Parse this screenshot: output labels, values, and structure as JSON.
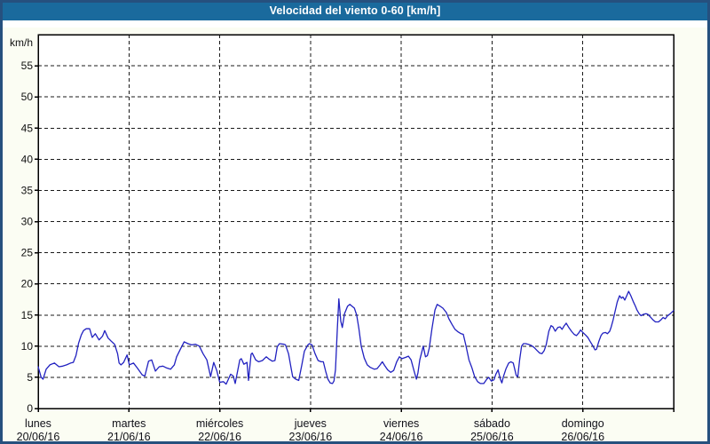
{
  "window": {
    "title": "Velocidad del viento 0-60 [km/h]"
  },
  "colors": {
    "title_bar_bg": "#1a6a9d",
    "title_text": "#ffffff",
    "frame_border": "#26507e",
    "page_bg": "#fbfdf3",
    "plot_bg": "#ffffff",
    "plot_border": "#000000",
    "grid": "#1a1a1a",
    "line": "#2121c0",
    "axis_text": "#101010",
    "day_text": "#101018"
  },
  "chart_data": {
    "type": "line",
    "title": "Velocidad del viento 0-60 [km/h]",
    "ylabel": "km/h",
    "ylim": [
      0,
      60
    ],
    "yticks": [
      0,
      5,
      10,
      15,
      20,
      25,
      30,
      35,
      40,
      45,
      50,
      55
    ],
    "grid": "dashed",
    "legend": "none",
    "x_unit": "hours_from_monday_00h",
    "xlim": [
      0,
      168
    ],
    "x_axis_days": [
      {
        "name": "lunes",
        "date": "20/06/16"
      },
      {
        "name": "martes",
        "date": "21/06/16"
      },
      {
        "name": "miércoles",
        "date": "22/06/16"
      },
      {
        "name": "jueves",
        "date": "23/06/16"
      },
      {
        "name": "viernes",
        "date": "24/06/16"
      },
      {
        "name": "sábado",
        "date": "25/06/16"
      },
      {
        "name": "domingo",
        "date": "26/06/16"
      }
    ],
    "series": [
      {
        "name": "Velocidad del viento [km/h]",
        "color": "#2121c0",
        "points": [
          [
            0,
            6.7
          ],
          [
            0.8,
            5.0
          ],
          [
            1.3,
            4.7
          ],
          [
            2.1,
            6.3
          ],
          [
            3.1,
            7.0
          ],
          [
            4.3,
            7.3
          ],
          [
            5.5,
            6.7
          ],
          [
            6.5,
            6.8
          ],
          [
            7.5,
            7.0
          ],
          [
            8.6,
            7.3
          ],
          [
            9.3,
            7.4
          ],
          [
            10,
            8.5
          ],
          [
            10.7,
            10.5
          ],
          [
            11.4,
            11.8
          ],
          [
            12,
            12.5
          ],
          [
            12.7,
            12.8
          ],
          [
            13.6,
            12.8
          ],
          [
            14.3,
            11.4
          ],
          [
            15.1,
            12.0
          ],
          [
            16.1,
            11.0
          ],
          [
            17,
            11.6
          ],
          [
            17.6,
            12.5
          ],
          [
            18.5,
            11.3
          ],
          [
            19.3,
            10.8
          ],
          [
            20.2,
            10.3
          ],
          [
            21,
            8.8
          ],
          [
            21.4,
            7.3
          ],
          [
            21.9,
            7.0
          ],
          [
            22.6,
            7.4
          ],
          [
            23.5,
            8.6
          ],
          [
            24.1,
            7.0
          ],
          [
            25.2,
            7.3
          ],
          [
            26.2,
            6.5
          ],
          [
            27.5,
            5.4
          ],
          [
            28.2,
            5.2
          ],
          [
            29.2,
            7.6
          ],
          [
            30,
            7.8
          ],
          [
            31,
            6.0
          ],
          [
            32,
            6.7
          ],
          [
            33,
            6.8
          ],
          [
            34,
            6.5
          ],
          [
            35,
            6.3
          ],
          [
            36,
            7.0
          ],
          [
            36.6,
            8.3
          ],
          [
            37.6,
            9.5
          ],
          [
            38.6,
            10.7
          ],
          [
            39.6,
            10.4
          ],
          [
            40.6,
            10.2
          ],
          [
            41.6,
            10.3
          ],
          [
            42.6,
            10.0
          ],
          [
            43.6,
            8.8
          ],
          [
            44.6,
            7.8
          ],
          [
            45.6,
            5.1
          ],
          [
            46.4,
            7.4
          ],
          [
            47.2,
            6.1
          ],
          [
            48,
            4.2
          ],
          [
            49,
            4.3
          ],
          [
            49.7,
            3.9
          ],
          [
            50.9,
            5.5
          ],
          [
            51.6,
            5.2
          ],
          [
            52.1,
            4.0
          ],
          [
            53.3,
            7.8
          ],
          [
            53.7,
            8.0
          ],
          [
            54.4,
            7.1
          ],
          [
            55.2,
            7.4
          ],
          [
            55.6,
            4.5
          ],
          [
            56.3,
            8.7
          ],
          [
            56.6,
            8.9
          ],
          [
            57.5,
            7.8
          ],
          [
            58.3,
            7.5
          ],
          [
            59.3,
            7.7
          ],
          [
            60.3,
            8.3
          ],
          [
            61.1,
            7.9
          ],
          [
            61.9,
            7.6
          ],
          [
            62.6,
            7.7
          ],
          [
            63.2,
            9.9
          ],
          [
            63.8,
            10.4
          ],
          [
            65,
            10.3
          ],
          [
            65.4,
            10.2
          ],
          [
            66.2,
            8.8
          ],
          [
            66.9,
            6.4
          ],
          [
            67.3,
            5.1
          ],
          [
            68.1,
            4.7
          ],
          [
            68.9,
            4.5
          ],
          [
            69.7,
            7.0
          ],
          [
            70.4,
            9.2
          ],
          [
            71.3,
            10.2
          ],
          [
            71.7,
            10.4
          ],
          [
            72.4,
            10.2
          ],
          [
            73.2,
            8.8
          ],
          [
            74,
            7.7
          ],
          [
            74.8,
            7.5
          ],
          [
            75.4,
            7.5
          ],
          [
            76,
            6.0
          ],
          [
            76.6,
            4.7
          ],
          [
            77.2,
            4.1
          ],
          [
            77.8,
            4.0
          ],
          [
            78.2,
            4.4
          ],
          [
            78.6,
            6.2
          ],
          [
            79.1,
            12.8
          ],
          [
            79.5,
            17.6
          ],
          [
            80,
            14.0
          ],
          [
            80.4,
            13.0
          ],
          [
            81,
            15.2
          ],
          [
            81.8,
            16.4
          ],
          [
            82.4,
            16.7
          ],
          [
            83,
            16.4
          ],
          [
            83.6,
            16.1
          ],
          [
            84.2,
            15.0
          ],
          [
            84.8,
            12.8
          ],
          [
            85.4,
            10.0
          ],
          [
            86.2,
            8.1
          ],
          [
            87,
            7.0
          ],
          [
            87.8,
            6.6
          ],
          [
            88.9,
            6.3
          ],
          [
            89.6,
            6.4
          ],
          [
            90.4,
            7.0
          ],
          [
            91,
            7.5
          ],
          [
            91.6,
            6.9
          ],
          [
            92.4,
            6.2
          ],
          [
            93.2,
            5.8
          ],
          [
            94,
            6.1
          ],
          [
            94.8,
            7.5
          ],
          [
            95.5,
            8.3
          ],
          [
            96.2,
            8.0
          ],
          [
            97.1,
            8.2
          ],
          [
            97.9,
            8.4
          ],
          [
            98.6,
            7.8
          ],
          [
            99.4,
            6.0
          ],
          [
            100,
            4.7
          ],
          [
            100.4,
            5.7
          ],
          [
            100.9,
            7.8
          ],
          [
            101.8,
            10.0
          ],
          [
            102.4,
            8.3
          ],
          [
            102.9,
            8.5
          ],
          [
            103.4,
            9.7
          ],
          [
            104.1,
            12.8
          ],
          [
            104.9,
            15.8
          ],
          [
            105.5,
            16.7
          ],
          [
            106.3,
            16.4
          ],
          [
            107,
            16.1
          ],
          [
            107.9,
            15.4
          ],
          [
            108.6,
            14.4
          ],
          [
            109.4,
            13.5
          ],
          [
            110.2,
            12.7
          ],
          [
            111,
            12.3
          ],
          [
            111.8,
            12.0
          ],
          [
            112.4,
            11.9
          ],
          [
            113.1,
            10.1
          ],
          [
            113.9,
            7.8
          ],
          [
            114.7,
            6.5
          ],
          [
            115.4,
            5.1
          ],
          [
            116.2,
            4.3
          ],
          [
            116.9,
            4.0
          ],
          [
            117.8,
            4.0
          ],
          [
            118.6,
            4.7
          ],
          [
            119.1,
            5.0
          ],
          [
            119.8,
            4.4
          ],
          [
            120.5,
            4.6
          ],
          [
            121,
            5.5
          ],
          [
            121.6,
            6.2
          ],
          [
            122.2,
            4.7
          ],
          [
            122.6,
            4.1
          ],
          [
            123,
            5.1
          ],
          [
            123.7,
            6.4
          ],
          [
            124.4,
            7.3
          ],
          [
            125,
            7.5
          ],
          [
            125.6,
            7.3
          ],
          [
            126.4,
            5.3
          ],
          [
            126.8,
            5.1
          ],
          [
            127.3,
            7.8
          ],
          [
            127.8,
            10.0
          ],
          [
            128.3,
            10.4
          ],
          [
            128.9,
            10.4
          ],
          [
            129.6,
            10.3
          ],
          [
            130.4,
            10.1
          ],
          [
            131.1,
            9.8
          ],
          [
            131.9,
            9.3
          ],
          [
            132.6,
            8.9
          ],
          [
            133.2,
            8.8
          ],
          [
            133.8,
            9.3
          ],
          [
            134.3,
            10.2
          ],
          [
            135,
            12.4
          ],
          [
            135.6,
            13.3
          ],
          [
            136.1,
            13.1
          ],
          [
            136.7,
            12.4
          ],
          [
            137.4,
            13.0
          ],
          [
            138,
            13.1
          ],
          [
            138.5,
            12.7
          ],
          [
            139,
            13.2
          ],
          [
            139.6,
            13.7
          ],
          [
            140.3,
            13.0
          ],
          [
            141,
            12.4
          ],
          [
            141.7,
            11.9
          ],
          [
            142.3,
            11.7
          ],
          [
            142.9,
            12.1
          ],
          [
            143.4,
            12.6
          ],
          [
            144,
            12.2
          ],
          [
            144.7,
            11.8
          ],
          [
            145.3,
            11.4
          ],
          [
            146,
            10.7
          ],
          [
            146.7,
            10.0
          ],
          [
            147.2,
            9.4
          ],
          [
            147.6,
            9.5
          ],
          [
            148.2,
            10.7
          ],
          [
            148.8,
            11.7
          ],
          [
            149.3,
            12.1
          ],
          [
            150,
            12.2
          ],
          [
            150.5,
            12.0
          ],
          [
            151.1,
            12.4
          ],
          [
            151.5,
            13.1
          ],
          [
            152,
            14.2
          ],
          [
            152.6,
            15.8
          ],
          [
            153.1,
            17.1
          ],
          [
            153.7,
            18.1
          ],
          [
            154.2,
            17.7
          ],
          [
            154.6,
            17.9
          ],
          [
            155.1,
            17.4
          ],
          [
            155.6,
            18.1
          ],
          [
            156.1,
            18.8
          ],
          [
            156.7,
            18.1
          ],
          [
            157.3,
            17.2
          ],
          [
            157.9,
            16.4
          ],
          [
            158.3,
            15.8
          ],
          [
            158.9,
            15.2
          ],
          [
            159.4,
            14.9
          ],
          [
            160,
            15.1
          ],
          [
            160.7,
            15.2
          ],
          [
            161.2,
            15.1
          ],
          [
            162,
            14.6
          ],
          [
            162.6,
            14.2
          ],
          [
            163.2,
            13.9
          ],
          [
            164,
            13.9
          ],
          [
            164.6,
            14.2
          ],
          [
            165.2,
            14.6
          ],
          [
            165.8,
            14.4
          ],
          [
            166.4,
            14.9
          ],
          [
            167.1,
            15.2
          ],
          [
            168,
            15.7
          ]
        ]
      }
    ]
  }
}
